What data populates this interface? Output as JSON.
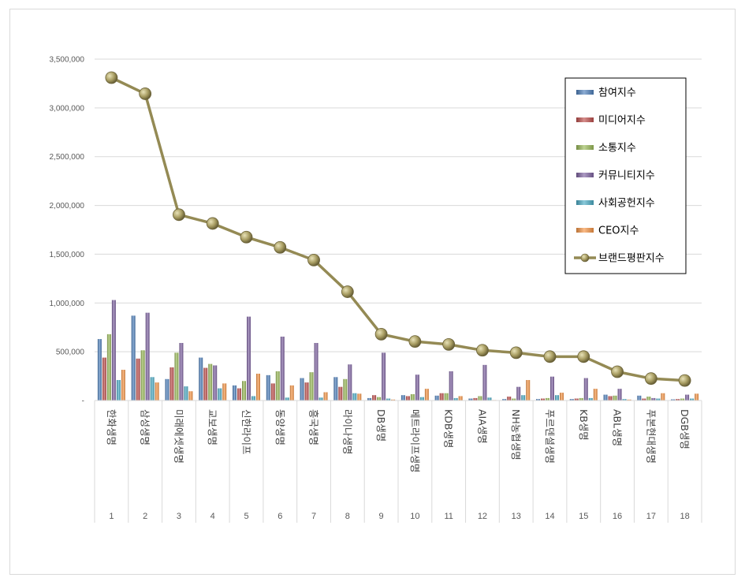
{
  "chart_data": {
    "type": "bar",
    "title": "",
    "xlabel": "",
    "ylabel": "",
    "ylim": [
      0,
      3500000
    ],
    "yticks": [
      "-",
      "500,000",
      "1,000,000",
      "1,500,000",
      "2,000,000",
      "2,500,000",
      "3,000,000",
      "3,500,000"
    ],
    "ytick_values": [
      0,
      500000,
      1000000,
      1500000,
      2000000,
      2500000,
      3000000,
      3500000
    ],
    "grid": true,
    "legend_position": "right",
    "categories": [
      "1",
      "2",
      "3",
      "4",
      "5",
      "6",
      "7",
      "8",
      "9",
      "10",
      "11",
      "12",
      "13",
      "14",
      "15",
      "16",
      "17",
      "18"
    ],
    "category_names": [
      "한화생명",
      "삼성생명",
      "미래에셋생명",
      "교보생명",
      "신한라이프",
      "동양생명",
      "흥국생명",
      "라이나생명",
      "DB생명",
      "메트라이프생명",
      "KDB생명",
      "AIA생명",
      "NH농협생명",
      "푸르덴셜생명",
      "KB생명",
      "ABL생명",
      "푸본현대생명",
      "DGB생명"
    ],
    "series": [
      {
        "name": "참여지수",
        "type": "bar",
        "color": "#4f81bd",
        "values": [
          630000,
          870000,
          220000,
          440000,
          155000,
          260000,
          230000,
          240000,
          25000,
          55000,
          50000,
          20000,
          15000,
          15000,
          15000,
          60000,
          50000,
          12000
        ]
      },
      {
        "name": "미디어지수",
        "type": "bar",
        "color": "#c0504d",
        "values": [
          440000,
          430000,
          340000,
          335000,
          125000,
          175000,
          185000,
          140000,
          55000,
          45000,
          75000,
          25000,
          40000,
          20000,
          20000,
          45000,
          20000,
          15000
        ]
      },
      {
        "name": "소통지수",
        "type": "bar",
        "color": "#9bbb59",
        "values": [
          680000,
          515000,
          490000,
          375000,
          200000,
          300000,
          290000,
          220000,
          35000,
          65000,
          75000,
          45000,
          20000,
          25000,
          25000,
          50000,
          40000,
          20000
        ]
      },
      {
        "name": "커뮤니티지수",
        "type": "bar",
        "color": "#8064a2",
        "values": [
          1030000,
          900000,
          590000,
          360000,
          860000,
          655000,
          590000,
          370000,
          490000,
          265000,
          300000,
          365000,
          140000,
          245000,
          230000,
          120000,
          25000,
          60000
        ]
      },
      {
        "name": "사회공헌지수",
        "type": "bar",
        "color": "#4bacc6",
        "values": [
          210000,
          240000,
          145000,
          125000,
          45000,
          30000,
          30000,
          75000,
          20000,
          35000,
          25000,
          30000,
          55000,
          55000,
          25000,
          15000,
          20000,
          20000
        ]
      },
      {
        "name": "CEO지수",
        "type": "bar",
        "color": "#f79646",
        "values": [
          315000,
          185000,
          95000,
          175000,
          275000,
          155000,
          85000,
          70000,
          10000,
          120000,
          45000,
          5000,
          210000,
          80000,
          120000,
          10000,
          75000,
          70000
        ]
      },
      {
        "name": "브랜드평판지수",
        "type": "line",
        "color": "#948a54",
        "values": [
          3310000,
          3145000,
          1905000,
          1815000,
          1675000,
          1570000,
          1440000,
          1115000,
          680000,
          605000,
          575000,
          515000,
          490000,
          450000,
          450000,
          295000,
          225000,
          205000
        ]
      }
    ]
  }
}
